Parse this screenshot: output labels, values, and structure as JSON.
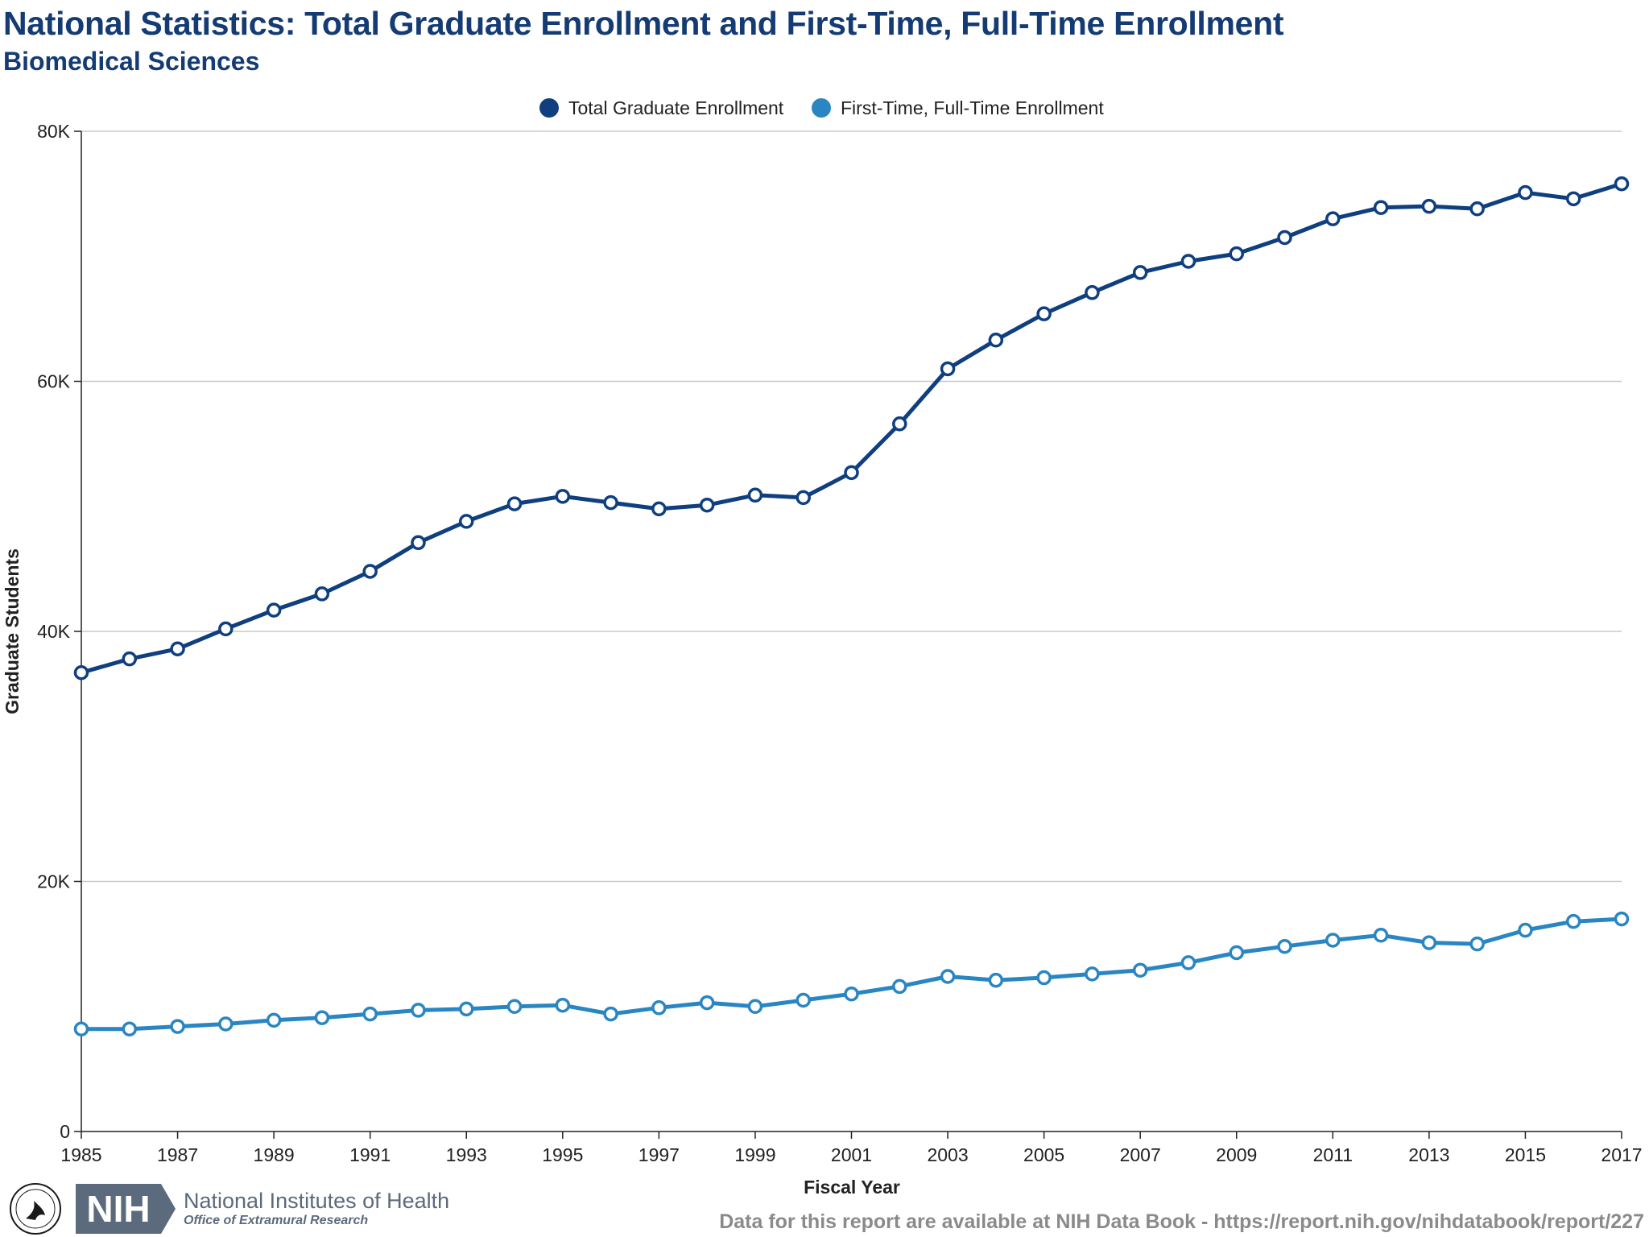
{
  "header": {
    "title": "National Statistics: Total Graduate Enrollment and First-Time, Full-Time Enrollment",
    "subtitle": "Biomedical Sciences"
  },
  "footer": {
    "org_name": "National Institutes of Health",
    "org_office": "Office of Extramural Research",
    "logo_text": "NIH",
    "source_note": "Data for this report are available at NIH Data Book - https://report.nih.gov/nihdatabook/report/227"
  },
  "chart_data": {
    "type": "line",
    "title": "National Statistics: Total Graduate Enrollment and First-Time, Full-Time Enrollment",
    "subtitle": "Biomedical Sciences",
    "xlabel": "Fiscal Year",
    "ylabel": "Graduate Students",
    "xlim": [
      1985,
      2017
    ],
    "ylim": [
      0,
      80000
    ],
    "x_ticks": [
      "1985",
      "1987",
      "1989",
      "1991",
      "1993",
      "1995",
      "1997",
      "1999",
      "2001",
      "2003",
      "2005",
      "2007",
      "2009",
      "2011",
      "2013",
      "2015",
      "2017"
    ],
    "y_ticks": [
      0,
      20000,
      40000,
      60000,
      80000
    ],
    "y_tick_labels": [
      "0",
      "20K",
      "40K",
      "60K",
      "80K"
    ],
    "grid": "horizontal",
    "legend_position": "top-center",
    "x": [
      1985,
      1986,
      1987,
      1988,
      1989,
      1990,
      1991,
      1992,
      1993,
      1994,
      1995,
      1996,
      1997,
      1998,
      1999,
      2000,
      2001,
      2002,
      2003,
      2004,
      2005,
      2006,
      2007,
      2008,
      2009,
      2010,
      2011,
      2012,
      2013,
      2014,
      2015,
      2016,
      2017
    ],
    "series": [
      {
        "name": "Total Graduate Enrollment",
        "color": "#0f3f7f",
        "values": [
          36700,
          37800,
          38600,
          40200,
          41700,
          43000,
          44800,
          47100,
          48800,
          50200,
          50800,
          50300,
          49800,
          50100,
          50900,
          50700,
          52700,
          56600,
          61000,
          63300,
          65400,
          67100,
          68700,
          69600,
          70200,
          71500,
          73000,
          73900,
          74000,
          73800,
          75100,
          74600,
          75800
        ]
      },
      {
        "name": "First-Time, Full-Time Enrollment",
        "color": "#2a86c2",
        "values": [
          8200,
          8200,
          8400,
          8600,
          8900,
          9100,
          9400,
          9700,
          9800,
          10000,
          10100,
          9400,
          9900,
          10300,
          10000,
          10500,
          11000,
          11600,
          12400,
          12100,
          12300,
          12600,
          12900,
          13500,
          14300,
          14800,
          15300,
          15700,
          15100,
          15000,
          16100,
          16800,
          17000
        ]
      }
    ]
  }
}
